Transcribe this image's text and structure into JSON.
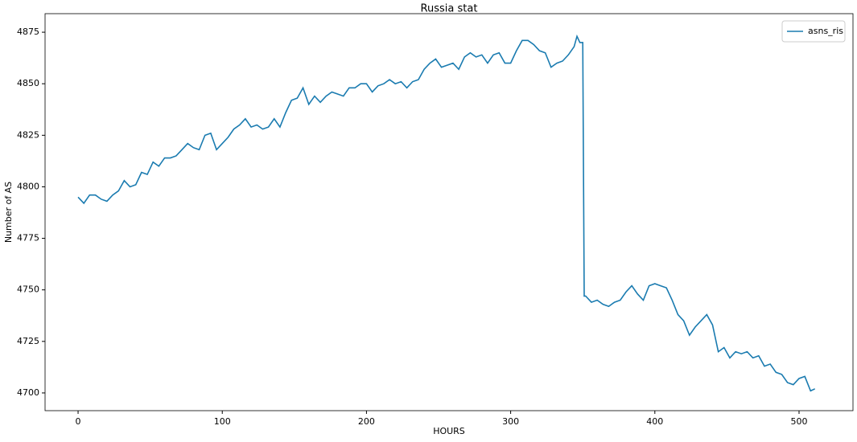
{
  "chart_data": {
    "type": "line",
    "title": "Russia stat",
    "xlabel": "HOURS",
    "ylabel": "Number of AS",
    "x": [
      0,
      4,
      8,
      12,
      16,
      20,
      24,
      28,
      32,
      36,
      40,
      44,
      48,
      52,
      56,
      60,
      64,
      68,
      72,
      76,
      80,
      84,
      88,
      92,
      96,
      100,
      104,
      108,
      112,
      116,
      120,
      124,
      128,
      132,
      136,
      140,
      144,
      148,
      152,
      156,
      160,
      164,
      168,
      172,
      176,
      180,
      184,
      188,
      192,
      196,
      200,
      204,
      208,
      212,
      216,
      220,
      224,
      228,
      232,
      236,
      240,
      244,
      248,
      252,
      256,
      260,
      264,
      268,
      272,
      276,
      280,
      284,
      288,
      292,
      296,
      300,
      304,
      308,
      312,
      316,
      320,
      324,
      328,
      332,
      336,
      340,
      344,
      346,
      348,
      350,
      351,
      352,
      356,
      360,
      364,
      368,
      372,
      376,
      380,
      384,
      388,
      392,
      396,
      400,
      404,
      408,
      412,
      416,
      420,
      424,
      428,
      432,
      436,
      440,
      444,
      448,
      452,
      456,
      460,
      464,
      468,
      472,
      476,
      480,
      484,
      488,
      492,
      496,
      500,
      504,
      508,
      511
    ],
    "series": [
      {
        "name": "asns_ris",
        "color": "#1a7bb0",
        "values": [
          4795,
          4792,
          4796,
          4796,
          4794,
          4793,
          4796,
          4798,
          4803,
          4800,
          4801,
          4807,
          4806,
          4812,
          4810,
          4814,
          4814,
          4815,
          4818,
          4821,
          4819,
          4818,
          4825,
          4826,
          4818,
          4821,
          4824,
          4828,
          4830,
          4833,
          4829,
          4830,
          4828,
          4829,
          4833,
          4829,
          4836,
          4842,
          4843,
          4848,
          4840,
          4844,
          4841,
          4844,
          4846,
          4845,
          4844,
          4848,
          4848,
          4850,
          4850,
          4846,
          4849,
          4850,
          4852,
          4850,
          4851,
          4848,
          4851,
          4852,
          4857,
          4860,
          4862,
          4858,
          4859,
          4860,
          4857,
          4863,
          4865,
          4863,
          4864,
          4860,
          4864,
          4865,
          4860,
          4860,
          4866,
          4871,
          4871,
          4869,
          4866,
          4865,
          4858,
          4860,
          4861,
          4864,
          4868,
          4873,
          4870,
          4870,
          4747,
          4747,
          4744,
          4745,
          4743,
          4742,
          4744,
          4745,
          4749,
          4752,
          4748,
          4745,
          4752,
          4753,
          4752,
          4751,
          4745,
          4738,
          4735,
          4728,
          4732,
          4735,
          4738,
          4733,
          4720,
          4722,
          4717,
          4720,
          4719,
          4720,
          4717,
          4718,
          4713,
          4714,
          4710,
          4709,
          4705,
          4704,
          4707,
          4708,
          4701,
          4702
        ]
      }
    ],
    "xlim": [
      -22.9,
      537.4
    ],
    "ylim": [
      4691.4,
      4884
    ],
    "xticks": [
      0,
      100,
      200,
      300,
      400,
      500
    ],
    "yticks": [
      4700,
      4725,
      4750,
      4775,
      4800,
      4825,
      4850,
      4875
    ],
    "legend": "upper right"
  }
}
